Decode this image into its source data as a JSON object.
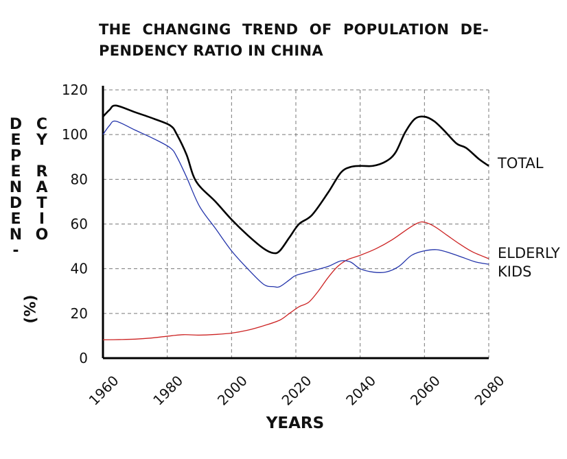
{
  "chart_data": {
    "type": "line",
    "title": "THE CHANGING TREND OF POPULATION DE- PENDENCY RATIO IN CHINA",
    "xlabel": "YEARS",
    "ylabel_col1": "DEPENDEN-",
    "ylabel_col2": "CY RATIO",
    "ylabel_unit": "(%)",
    "xlim": [
      1960,
      2080
    ],
    "ylim": [
      0,
      120
    ],
    "xticks": [
      1960,
      1980,
      2000,
      2020,
      2040,
      2060,
      2080
    ],
    "yticks": [
      0,
      20,
      40,
      60,
      80,
      100,
      120
    ],
    "grid": true,
    "series": [
      {
        "name": "TOTAL",
        "color": "#000000",
        "x": [
          1960,
          1962,
          1964,
          1970,
          1976,
          1981,
          1983,
          1986,
          1989,
          1995,
          2000,
          2005,
          2010,
          2013,
          2015,
          2018,
          2021,
          2025,
          2030,
          2034,
          2037,
          2040,
          2044,
          2048,
          2051,
          2054,
          2057,
          2060,
          2063,
          2066,
          2070,
          2073,
          2077,
          2080
        ],
        "values": [
          108,
          111,
          113,
          110,
          107,
          104,
          100,
          91,
          79,
          70,
          62,
          55,
          49,
          47,
          48,
          54,
          60,
          64,
          74,
          83,
          85.5,
          86,
          86,
          88,
          92,
          101,
          107,
          108,
          106,
          102,
          96,
          94,
          89,
          86
        ]
      },
      {
        "name": "KIDS",
        "color": "#2233aa",
        "x": [
          1960,
          1962,
          1964,
          1970,
          1976,
          1981,
          1983,
          1986,
          1990,
          1995,
          2000,
          2005,
          2010,
          2013,
          2015,
          2018,
          2020,
          2025,
          2030,
          2034,
          2037,
          2040,
          2044,
          2048,
          2052,
          2056,
          2060,
          2064,
          2068,
          2072,
          2076,
          2080
        ],
        "values": [
          100,
          104,
          106,
          102,
          98,
          94,
          90,
          81,
          68,
          58,
          48,
          40,
          33,
          32,
          32,
          35,
          37,
          39,
          41,
          43.5,
          43,
          40,
          38.5,
          38.5,
          41,
          46,
          48,
          48.5,
          47,
          45,
          43,
          42
        ]
      },
      {
        "name": "ELDERLY",
        "color": "#cc2222",
        "x": [
          1960,
          1965,
          1970,
          1975,
          1980,
          1985,
          1990,
          1995,
          2000,
          2005,
          2010,
          2015,
          2018,
          2021,
          2024,
          2027,
          2030,
          2033,
          2036,
          2040,
          2045,
          2050,
          2055,
          2058,
          2060,
          2063,
          2067,
          2071,
          2075,
          2080
        ],
        "values": [
          8.2,
          8.3,
          8.5,
          9,
          9.8,
          10.5,
          10.3,
          10.6,
          11.2,
          12.5,
          14.5,
          17,
          20,
          23,
          25,
          30,
          36,
          41,
          44,
          46,
          49,
          53,
          58,
          60.5,
          60.8,
          59,
          55,
          51,
          47.5,
          44.5
        ]
      }
    ],
    "legend": "right, at line ends"
  }
}
